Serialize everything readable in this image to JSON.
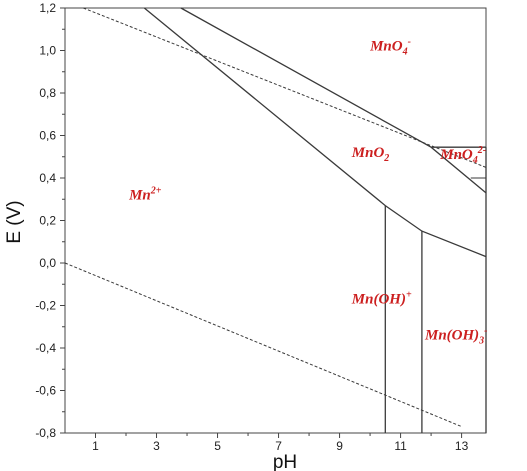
{
  "chart_data": {
    "type": "pourbaix",
    "xlabel": "pH",
    "ylabel": "E (V)",
    "xlim": [
      0,
      13.8
    ],
    "ylim": [
      -0.8,
      1.2
    ],
    "x_ticks": [
      "1",
      "3",
      "5",
      "7",
      "9",
      "11",
      "13"
    ],
    "x_tick_values": [
      1,
      3,
      5,
      7,
      9,
      11,
      13
    ],
    "y_ticks": [
      "1,2",
      "1,0",
      "0,8",
      "0,6",
      "0,4",
      "0,2",
      "0,0",
      "-0,2",
      "-0,4",
      "-0,6",
      "-0,8"
    ],
    "y_tick_values": [
      1.2,
      1.0,
      0.8,
      0.6,
      0.4,
      0.2,
      0.0,
      -0.2,
      -0.4,
      -0.6,
      -0.8
    ],
    "region_labels": [
      {
        "base": "MnO",
        "sub": "4",
        "sup": "-",
        "ion": "",
        "x": 10.0,
        "y": 1.0
      },
      {
        "base": "MnO",
        "sub": "2",
        "sup": "",
        "ion": "",
        "x": 9.4,
        "y": 0.5
      },
      {
        "base": "MnO",
        "sub": "4",
        "sup": "2-",
        "ion": "",
        "x": 12.3,
        "y": 0.49
      },
      {
        "base": "Mn",
        "sub": "",
        "sup": "2+",
        "ion": "",
        "x": 2.1,
        "y": 0.3
      },
      {
        "base": "Mn(OH)",
        "sub": "",
        "sup": "+",
        "ion": "",
        "x": 9.4,
        "y": -0.19
      },
      {
        "base": "Mn(OH)",
        "sub": "3",
        "sup": "-",
        "ion": "",
        "x": 11.8,
        "y": -0.36
      }
    ],
    "boundaries": [
      {
        "style": "solid",
        "points": [
          [
            2.6,
            1.2
          ],
          [
            10.5,
            0.27
          ],
          [
            11.7,
            0.15
          ],
          [
            13.8,
            0.03
          ]
        ]
      },
      {
        "style": "solid",
        "points": [
          [
            3.8,
            1.2
          ],
          [
            12.0,
            0.545
          ],
          [
            13.8,
            0.33
          ]
        ]
      },
      {
        "style": "solid",
        "points": [
          [
            12.0,
            0.545
          ],
          [
            13.8,
            0.545
          ]
        ]
      },
      {
        "style": "solid",
        "points": [
          [
            10.5,
            0.27
          ],
          [
            10.5,
            -0.8
          ]
        ]
      },
      {
        "style": "solid",
        "points": [
          [
            11.7,
            0.15
          ],
          [
            11.7,
            -0.8
          ]
        ]
      },
      {
        "style": "solid",
        "points": [
          [
            13.8,
            0.545
          ],
          [
            13.8,
            -0.8
          ]
        ]
      }
    ],
    "water_lines": [
      {
        "style": "dashed",
        "points": [
          [
            0.6,
            1.2
          ],
          [
            13.8,
            0.45
          ]
        ]
      },
      {
        "style": "dashed",
        "points": [
          [
            0.0,
            0.0
          ],
          [
            13.0,
            -0.77
          ]
        ]
      }
    ],
    "colors": {
      "lines": "#3a3a3a",
      "labels": "#cc1f1f"
    }
  }
}
